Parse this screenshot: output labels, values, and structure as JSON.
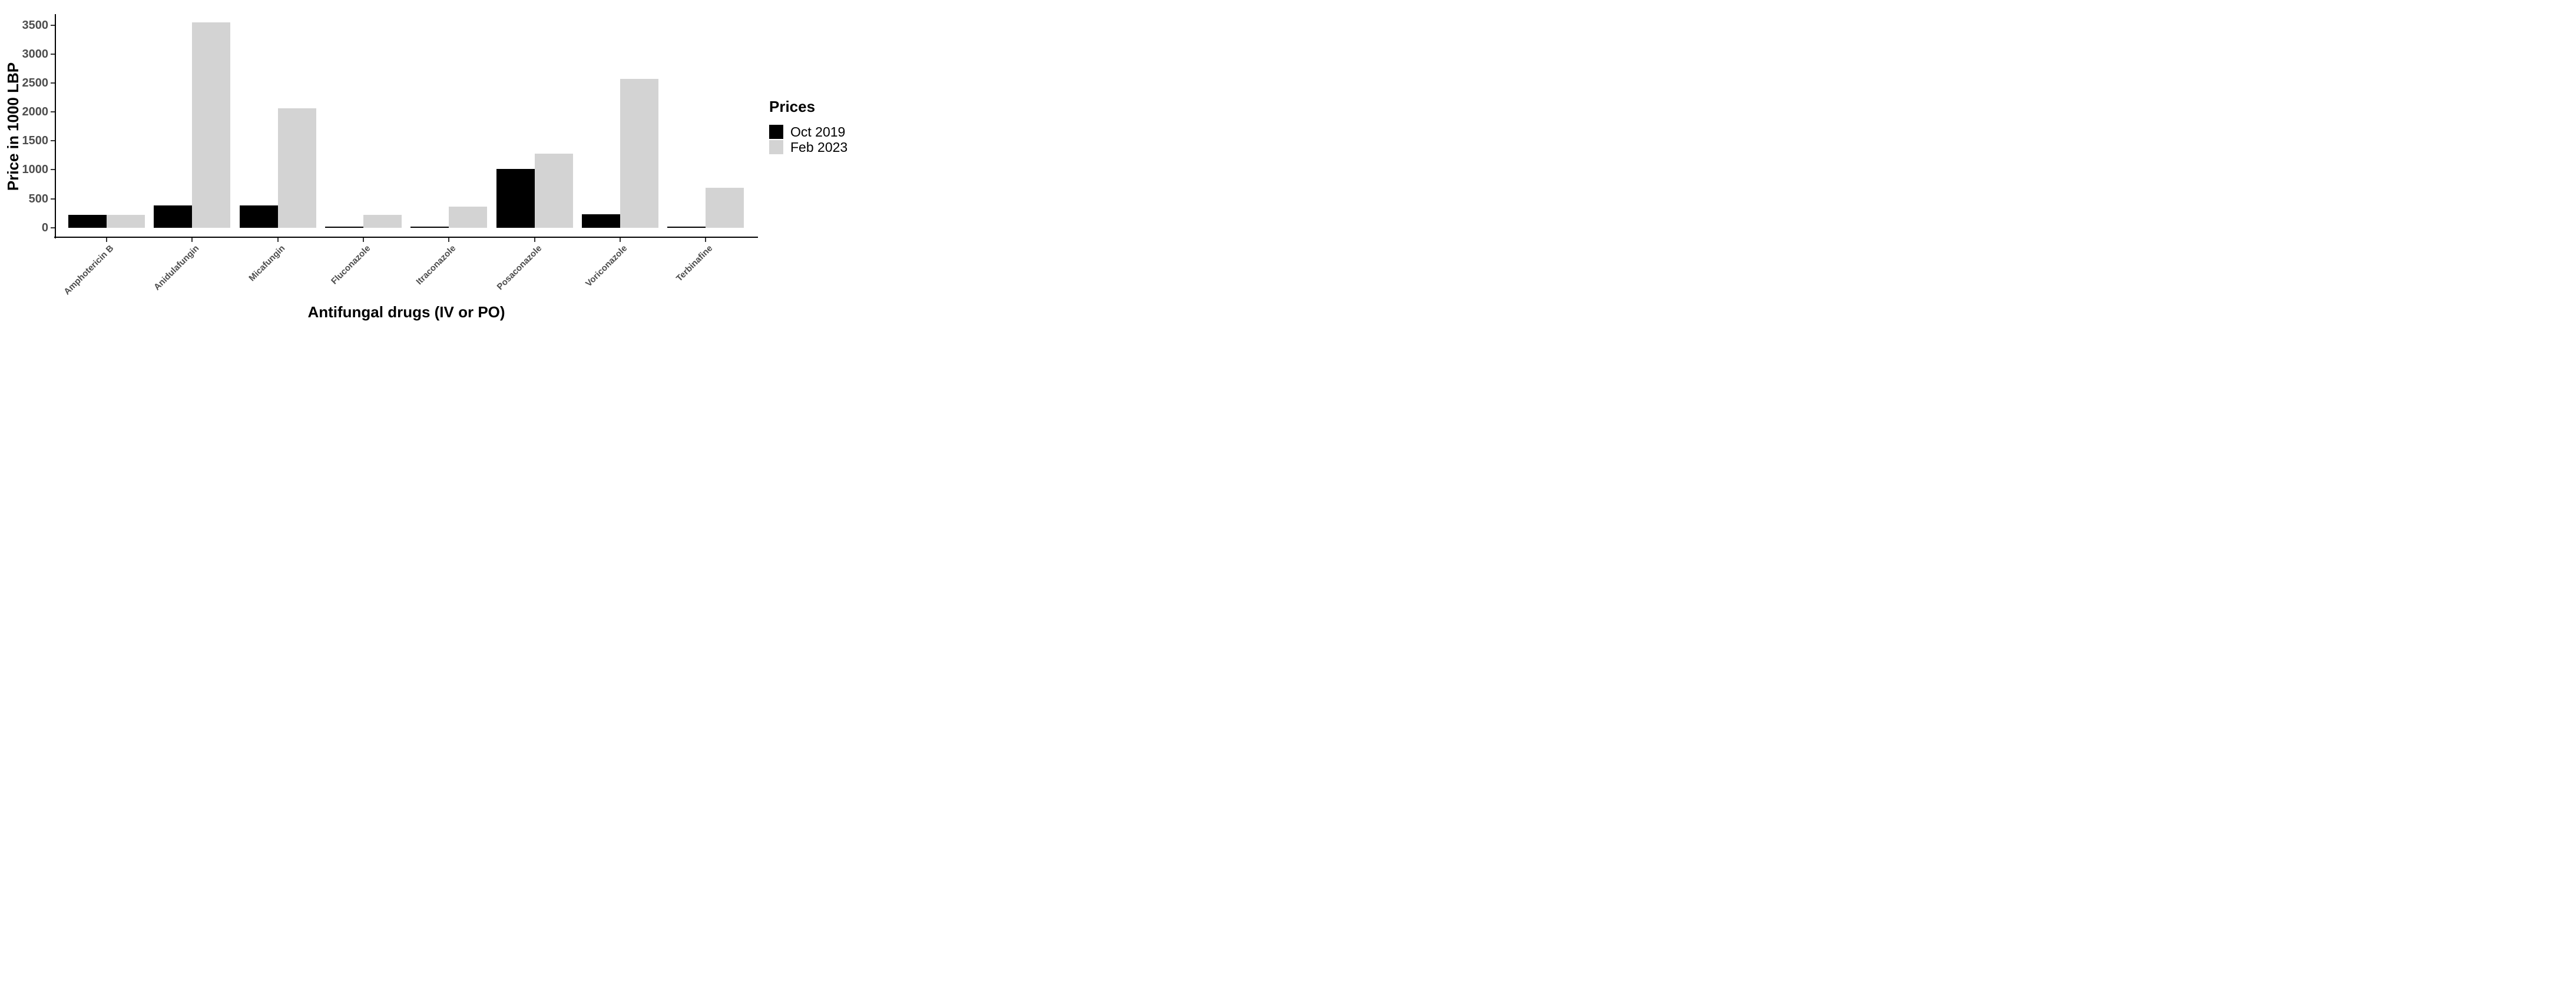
{
  "chart_data": {
    "type": "bar",
    "title": "",
    "xlabel": "Antifungal drugs (IV or PO)",
    "ylabel": "Price in 1000 LBP",
    "categories": [
      "Amphotericin B",
      "Anidulafungin",
      "Micafungin",
      "Fluconazole",
      "Itraconazole",
      "Posaconazole",
      "Voriconazole",
      "Terbinafine"
    ],
    "series": [
      {
        "name": "Oct 2019",
        "color": "#000000",
        "values": [
          223,
          385,
          380,
          15,
          15,
          1010,
          235,
          12
        ]
      },
      {
        "name": "Feb 2023",
        "color": "#d3d3d3",
        "values": [
          220,
          3550,
          2060,
          225,
          365,
          1280,
          2570,
          685
        ]
      }
    ],
    "ylim": [
      0,
      3675
    ],
    "yticks": [
      0,
      500,
      1000,
      1500,
      2000,
      2500,
      3000,
      3500
    ],
    "grid": false,
    "legend_position": "right",
    "legend_title": "Prices",
    "bar_group_width": 0.9,
    "axis_text_color": "#4d4d4d",
    "axis_line_color": "#000000"
  },
  "legend": {
    "title": "Prices",
    "entries": [
      {
        "label": "Oct 2019",
        "color": "#000000"
      },
      {
        "label": "Feb 2023",
        "color": "#d3d3d3"
      }
    ]
  }
}
